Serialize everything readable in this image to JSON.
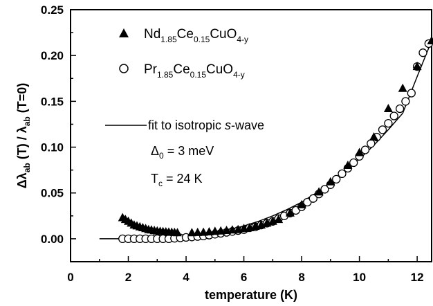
{
  "chart_data": {
    "type": "scatter",
    "xlabel": "temperature (K)",
    "ylabel": {
      "prefix": "Δλ",
      "sub1": "ab",
      "mid": " (T) / λ",
      "sub2": "ab",
      "suffix": " (T=0)"
    },
    "xlim": [
      0,
      12.5
    ],
    "ylim": [
      -0.025,
      0.25
    ],
    "x_ticks": [
      0,
      2,
      4,
      6,
      8,
      10,
      12
    ],
    "x_tick_labels": [
      "0",
      "2",
      "4",
      "6",
      "8",
      "10",
      "12"
    ],
    "y_ticks": [
      0.0,
      0.05,
      0.1,
      0.15,
      0.2,
      0.25
    ],
    "y_tick_labels": [
      "0.00",
      "0.05",
      "0.10",
      "0.15",
      "0.20",
      "0.25"
    ],
    "grid": false,
    "legend_position": "top-left",
    "series": [
      {
        "name": "Nd",
        "legend": {
          "a": "Nd",
          "s1": "1.85",
          "b": "Ce",
          "s2": "0.15",
          "c": "CuO",
          "s3": "4-y"
        },
        "marker": "filled-triangle",
        "x": [
          1.8,
          1.9,
          2.0,
          2.1,
          2.2,
          2.3,
          2.4,
          2.5,
          2.6,
          2.7,
          2.8,
          2.9,
          3.0,
          3.1,
          3.2,
          3.3,
          3.4,
          3.5,
          3.6,
          3.7,
          4.2,
          4.4,
          4.6,
          4.8,
          5.0,
          5.2,
          5.4,
          5.6,
          5.8,
          6.0,
          6.2,
          6.4,
          6.6,
          6.8,
          7.0,
          7.2,
          7.6,
          8.0,
          8.6,
          9.0,
          9.6,
          10.0,
          10.5,
          11.0,
          11.5,
          12.0,
          12.5
        ],
        "y": [
          0.023,
          0.021,
          0.019,
          0.017,
          0.015,
          0.014,
          0.013,
          0.012,
          0.011,
          0.01,
          0.0095,
          0.009,
          0.0085,
          0.008,
          0.0078,
          0.0075,
          0.0072,
          0.007,
          0.0068,
          0.0065,
          0.0065,
          0.0068,
          0.007,
          0.0075,
          0.008,
          0.0085,
          0.009,
          0.0095,
          0.01,
          0.011,
          0.012,
          0.0135,
          0.015,
          0.017,
          0.019,
          0.021,
          0.028,
          0.037,
          0.051,
          0.062,
          0.08,
          0.094,
          0.111,
          0.142,
          0.164,
          0.188,
          0.216
        ]
      },
      {
        "name": "Pr",
        "legend": {
          "a": "Pr",
          "s1": "1.85",
          "b": "Ce",
          "s2": "0.15",
          "c": "CuO",
          "s3": "4-y"
        },
        "marker": "open-circle",
        "x": [
          1.8,
          2.0,
          2.2,
          2.4,
          2.6,
          2.8,
          3.0,
          3.2,
          3.4,
          3.6,
          3.8,
          4.0,
          4.2,
          4.4,
          4.6,
          4.8,
          5.0,
          5.2,
          5.4,
          5.6,
          5.8,
          6.0,
          6.2,
          6.4,
          6.6,
          6.8,
          7.0,
          7.2,
          7.4,
          7.6,
          7.8,
          8.0,
          8.2,
          8.4,
          8.6,
          8.8,
          9.0,
          9.2,
          9.4,
          9.6,
          9.8,
          10.0,
          10.2,
          10.4,
          10.6,
          10.8,
          11.0,
          11.2,
          11.4,
          11.6,
          11.8,
          12.0,
          12.2,
          12.4
        ],
        "y": [
          0.0,
          0.0,
          0.0,
          0.0,
          0.0,
          0.0,
          0.0,
          0.0,
          0.0,
          0.0005,
          0.001,
          0.0015,
          0.002,
          0.0025,
          0.003,
          0.004,
          0.005,
          0.006,
          0.007,
          0.008,
          0.009,
          0.01,
          0.012,
          0.013,
          0.015,
          0.017,
          0.019,
          0.022,
          0.025,
          0.028,
          0.031,
          0.035,
          0.04,
          0.044,
          0.049,
          0.054,
          0.059,
          0.065,
          0.071,
          0.077,
          0.083,
          0.09,
          0.097,
          0.104,
          0.111,
          0.119,
          0.126,
          0.134,
          0.142,
          0.15,
          0.159,
          0.188,
          0.203,
          0.213
        ]
      }
    ],
    "fit": {
      "label": {
        "pre": "fit to isotropic ",
        "it": "s",
        "post": "-wave"
      },
      "x": [
        1.0,
        1.5,
        2.0,
        2.5,
        3.0,
        3.5,
        4.0,
        4.5,
        5.0,
        5.5,
        6.0,
        6.5,
        7.0,
        7.5,
        8.0,
        8.5,
        9.0,
        9.5,
        10.0,
        10.5,
        11.0,
        11.5,
        12.0,
        12.5
      ],
      "y": [
        0.0,
        0.0,
        0.0,
        0.0002,
        0.0006,
        0.0013,
        0.0025,
        0.0042,
        0.0066,
        0.0098,
        0.014,
        0.019,
        0.025,
        0.032,
        0.04,
        0.05,
        0.061,
        0.073,
        0.087,
        0.102,
        0.119,
        0.137,
        0.177,
        0.216
      ]
    },
    "annotations": {
      "delta": {
        "sym": "Δ",
        "sub": "0",
        "rest": " = 3 meV"
      },
      "tc": {
        "sym": "T",
        "sub": "c",
        "rest": " = 24 K"
      }
    }
  }
}
